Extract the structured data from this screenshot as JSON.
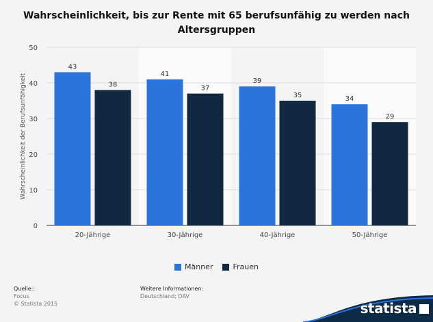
{
  "title": "Wahrscheinlichkeit, bis zur Rente mit 65 berufsunfähig zu werden nach Altersgruppen",
  "chart_data": {
    "type": "bar",
    "title": "Wahrscheinlichkeit, bis zur Rente mit 65 berufsunfähig zu werden nach Altersgruppen",
    "ylabel": "Wahrscheinlichkeit der Berufsunfähigkeit",
    "xlabel": "",
    "ylim": [
      0,
      50
    ],
    "yticks": [
      0,
      10,
      20,
      30,
      40,
      50
    ],
    "categories": [
      "20-Jährige",
      "30-Jährige",
      "40-Jährige",
      "50-Jährige"
    ],
    "series": [
      {
        "name": "Männer",
        "values": [
          43,
          41,
          39,
          34
        ],
        "color": "#2a74db"
      },
      {
        "name": "Frauen",
        "values": [
          38,
          37,
          35,
          29
        ],
        "color": "#102840"
      }
    ],
    "legend": "bottom-center",
    "grid": true
  },
  "footer": {
    "source_heading": "Quelle::",
    "source": "Focus",
    "copyright": "© Statista 2015",
    "info_heading": "Weitere Informationen:",
    "info": "Deutschland; DAV"
  },
  "brand": {
    "name": "statista",
    "color": "#0d2a46"
  }
}
